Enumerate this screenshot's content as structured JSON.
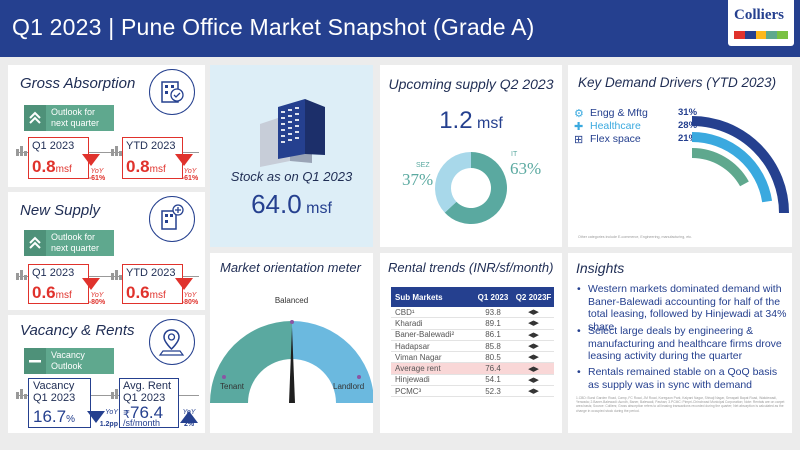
{
  "header": {
    "title": "Q1 2023 | Pune Office Market Snapshot (Grade A)",
    "logo_text": "Colliers",
    "logo_bar_colors": [
      "#e0322c",
      "#25408f",
      "#ffb81c",
      "#5fa88e",
      "#7ac143"
    ]
  },
  "gross_absorption": {
    "title": "Gross Absorption",
    "icon": "building-handshake-icon",
    "outlook_label": "Outlook for next quarter",
    "outlook_icon": "double-chevron-up-icon",
    "q1_label": "Q1 2023",
    "q1_value": "0.8",
    "q1_unit": "msf",
    "q1_yoy_label": "YoY",
    "q1_yoy_value": "-61%",
    "ytd_label": "YTD 2023",
    "ytd_value": "0.8",
    "ytd_unit": "msf",
    "ytd_yoy_label": "YoY",
    "ytd_yoy_value": "-61%"
  },
  "new_supply": {
    "title": "New Supply",
    "icon": "building-plus-icon",
    "outlook_label": "Outlook for next quarter",
    "outlook_icon": "double-chevron-up-icon",
    "q1_label": "Q1 2023",
    "q1_value": "0.6",
    "q1_unit": "msf",
    "q1_yoy_label": "YoY",
    "q1_yoy_value": "-80%",
    "ytd_label": "YTD 2023",
    "ytd_value": "0.6",
    "ytd_unit": "msf",
    "ytd_yoy_label": "YoY",
    "ytd_yoy_value": "-80%"
  },
  "vacancy_rents": {
    "title": "Vacancy & Rents",
    "icon": "location-pin-icon",
    "outlook_label": "Vacancy Outlook",
    "outlook_icon": "dash-icon",
    "vacancy_label": "Vacancy",
    "vacancy_period": "Q1 2023",
    "vacancy_value": "16.7",
    "vacancy_unit": "%",
    "vacancy_yoy_label": "YoY",
    "vacancy_yoy_value": "1.2pp",
    "rent_label": "Avg. Rent",
    "rent_period": "Q1 2023",
    "rent_currency": "₹",
    "rent_value": "76.4",
    "rent_unit": "/sf/month",
    "rent_yoy_label": "YoY",
    "rent_yoy_value": "2%"
  },
  "stock": {
    "label": "Stock as on Q1 2023",
    "value": "64.0",
    "unit": "msf",
    "icon": "office-towers-icon"
  },
  "upcoming_supply": {
    "title": "Upcoming supply Q2 2023",
    "value": "1.2",
    "unit": "msf",
    "sez_label": "SEZ",
    "sez_value": "37%",
    "it_label": "IT",
    "it_value": "63%",
    "sez_color": "#a8d8ea",
    "it_color": "#5aa9a0"
  },
  "demand_drivers": {
    "title": "Key Demand Drivers (YTD 2023)",
    "items": [
      {
        "label": "Engg & Mftg",
        "value": "31%",
        "icon": "gears-icon",
        "color": "#25408f"
      },
      {
        "label": "Healthcare",
        "value": "28%",
        "icon": "medical-cross-icon",
        "color": "#3aa9df"
      },
      {
        "label": "Flex space",
        "value": "21%",
        "icon": "cowork-icon",
        "color": "#5fa88e"
      }
    ],
    "footnote": "Other categories include E-commerce, Engineering, manufacturing, etc."
  },
  "orientation": {
    "title": "Market orientation meter",
    "label_left": "Tenant",
    "label_top": "Balanced",
    "label_right": "Landlord"
  },
  "rental_trends": {
    "title": "Rental trends (INR/sf/month)",
    "headers": [
      "Sub Markets",
      "Q1 2023",
      "Q2 2023F"
    ],
    "rows": [
      {
        "market": "CBD¹",
        "q1": "93.8",
        "f": "◀▶"
      },
      {
        "market": "Kharadi",
        "q1": "89.1",
        "f": "◀▶"
      },
      {
        "market": "Baner-Balewadi²",
        "q1": "86.1",
        "f": "◀▶"
      },
      {
        "market": "Hadapsar",
        "q1": "85.8",
        "f": "◀▶"
      },
      {
        "market": "Viman Nagar",
        "q1": "80.5",
        "f": "◀▶"
      },
      {
        "market": "Average rent",
        "q1": "76.4",
        "f": "◀▶"
      },
      {
        "market": "Hinjewadi",
        "q1": "54.1",
        "f": "◀▶"
      },
      {
        "market": "PCMC³",
        "q1": "52.3",
        "f": "◀▶"
      }
    ]
  },
  "insights": {
    "title": "Insights",
    "points": [
      "Western markets dominated demand with Baner-Balewadi accounting for half of the total leasing, followed by Hinjewadi at 34% share",
      "Select large deals by engineering & manufacturing and healthcare firms drove leasing activity during the quarter",
      "Rentals remained stable on a QoQ basis as supply was in sync with demand"
    ],
    "footnotes": "1.CBD: Bund Garden Road, Camp, FC Road, JM Road, Koregaon Park, Kalyani Nagar, Shivaji Nagar, Senapati Bapat Road, Wakdewadi, Yerwada; 2.Baner-Balewadi: Aundh, Baner, Balewadi, Pashan; 3.PCMC: Pimpri-Chinchwad Municipal Corporation; Note: Rentals are on carpet area basis; Source: Colliers; Gross absorption refers to all leasing transactions recorded during the quarter; Net absorption is calculated as the change in occupied stock during the period."
  }
}
